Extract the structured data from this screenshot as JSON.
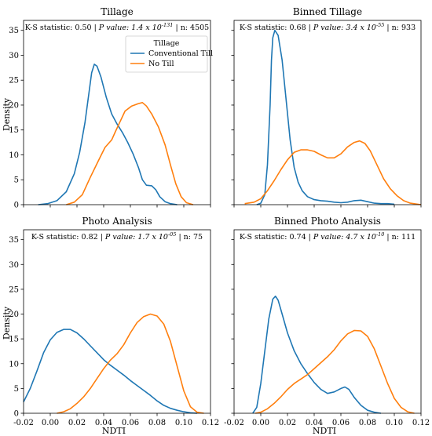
{
  "figure": {
    "ylabel": "Density",
    "xlabel": "NDTI",
    "xlim": [
      -0.02,
      0.12
    ],
    "ylim": [
      0,
      37
    ],
    "xticks": [
      "-0.02",
      "0.00",
      "0.02",
      "0.04",
      "0.06",
      "0.08",
      "0.10",
      "0.12"
    ],
    "yticks": [
      "0",
      "5",
      "10",
      "15",
      "20",
      "25",
      "30",
      "35"
    ]
  },
  "legend": {
    "title": "Tillage",
    "items": [
      "Conventional Till",
      "No Till"
    ]
  },
  "colors": {
    "conventional": "#1f77b4",
    "no_till": "#ff7f0e"
  },
  "chart_data": [
    {
      "type": "line",
      "title": "Tillage",
      "stats": {
        "ks_label": "K-S statistic: 0.50",
        "p_label": "P value:",
        "p_value": "1.4 x 10",
        "p_exp": "-131",
        "n_label": "n: 4505"
      },
      "xlim": [
        -0.02,
        0.12
      ],
      "ylim": [
        0,
        37
      ],
      "series": [
        {
          "name": "Conventional Till",
          "points": [
            [
              -0.009,
              0
            ],
            [
              -0.002,
              0.2
            ],
            [
              0.005,
              0.8
            ],
            [
              0.012,
              2.6
            ],
            [
              0.018,
              6.2
            ],
            [
              0.022,
              10.5
            ],
            [
              0.026,
              16.5
            ],
            [
              0.029,
              22.5
            ],
            [
              0.031,
              26.5
            ],
            [
              0.033,
              28.2
            ],
            [
              0.035,
              27.8
            ],
            [
              0.038,
              25.6
            ],
            [
              0.042,
              21.5
            ],
            [
              0.046,
              18.2
            ],
            [
              0.05,
              16.2
            ],
            [
              0.054,
              14.5
            ],
            [
              0.058,
              12.5
            ],
            [
              0.062,
              10.2
            ],
            [
              0.066,
              7.5
            ],
            [
              0.069,
              5.0
            ],
            [
              0.072,
              3.9
            ],
            [
              0.076,
              3.8
            ],
            [
              0.079,
              3.0
            ],
            [
              0.082,
              1.6
            ],
            [
              0.086,
              0.6
            ],
            [
              0.09,
              0.2
            ],
            [
              0.095,
              0
            ]
          ]
        },
        {
          "name": "No Till",
          "points": [
            [
              0.012,
              0
            ],
            [
              0.018,
              0.5
            ],
            [
              0.024,
              2.0
            ],
            [
              0.03,
              5.5
            ],
            [
              0.036,
              8.8
            ],
            [
              0.041,
              11.5
            ],
            [
              0.046,
              13.0
            ],
            [
              0.049,
              14.8
            ],
            [
              0.052,
              16.5
            ],
            [
              0.056,
              18.8
            ],
            [
              0.061,
              19.8
            ],
            [
              0.066,
              20.3
            ],
            [
              0.069,
              20.5
            ],
            [
              0.072,
              19.8
            ],
            [
              0.076,
              18.2
            ],
            [
              0.081,
              15.6
            ],
            [
              0.086,
              12.0
            ],
            [
              0.09,
              8.0
            ],
            [
              0.094,
              4.2
            ],
            [
              0.098,
              1.6
            ],
            [
              0.102,
              0.4
            ],
            [
              0.107,
              0
            ]
          ]
        }
      ]
    },
    {
      "type": "line",
      "title": "Binned Tillage",
      "stats": {
        "ks_label": "K-S statistic: 0.68",
        "p_label": "P value:",
        "p_value": "3.4 x 10",
        "p_exp": "-55",
        "n_label": "n: 933"
      },
      "xlim": [
        -0.02,
        0.12
      ],
      "ylim": [
        0,
        37
      ],
      "series": [
        {
          "name": "Conventional Till",
          "points": [
            [
              -0.003,
              0
            ],
            [
              0.0,
              0.3
            ],
            [
              0.003,
              2.0
            ],
            [
              0.005,
              8.0
            ],
            [
              0.007,
              20.0
            ],
            [
              0.008,
              29.0
            ],
            [
              0.009,
              33.5
            ],
            [
              0.0105,
              35.0
            ],
            [
              0.013,
              34.0
            ],
            [
              0.016,
              29.0
            ],
            [
              0.019,
              21.0
            ],
            [
              0.022,
              13.0
            ],
            [
              0.025,
              7.5
            ],
            [
              0.028,
              4.5
            ],
            [
              0.031,
              2.8
            ],
            [
              0.035,
              1.6
            ],
            [
              0.04,
              1.0
            ],
            [
              0.045,
              0.8
            ],
            [
              0.05,
              0.7
            ],
            [
              0.055,
              0.5
            ],
            [
              0.06,
              0.4
            ],
            [
              0.065,
              0.5
            ],
            [
              0.07,
              0.8
            ],
            [
              0.075,
              0.9
            ],
            [
              0.08,
              0.6
            ],
            [
              0.085,
              0.3
            ],
            [
              0.09,
              0.2
            ],
            [
              0.095,
              0.2
            ],
            [
              0.1,
              0.1
            ]
          ]
        },
        {
          "name": "No Till",
          "points": [
            [
              -0.012,
              0.2
            ],
            [
              -0.005,
              0.5
            ],
            [
              0.0,
              1.2
            ],
            [
              0.005,
              2.8
            ],
            [
              0.01,
              4.8
            ],
            [
              0.015,
              7.0
            ],
            [
              0.02,
              9.0
            ],
            [
              0.025,
              10.5
            ],
            [
              0.03,
              11.0
            ],
            [
              0.035,
              11.0
            ],
            [
              0.04,
              10.7
            ],
            [
              0.045,
              10.0
            ],
            [
              0.05,
              9.4
            ],
            [
              0.055,
              9.4
            ],
            [
              0.06,
              10.2
            ],
            [
              0.065,
              11.6
            ],
            [
              0.07,
              12.5
            ],
            [
              0.074,
              12.8
            ],
            [
              0.078,
              12.3
            ],
            [
              0.082,
              10.8
            ],
            [
              0.087,
              8.0
            ],
            [
              0.092,
              5.2
            ],
            [
              0.097,
              3.2
            ],
            [
              0.102,
              1.8
            ],
            [
              0.107,
              0.8
            ],
            [
              0.112,
              0.3
            ],
            [
              0.12,
              0
            ]
          ]
        }
      ]
    },
    {
      "type": "line",
      "title": "Photo Analysis",
      "stats": {
        "ks_label": "K-S statistic: 0.82",
        "p_label": "P value:",
        "p_value": "1.7 x 10",
        "p_exp": "-05",
        "n_label": "n: 75"
      },
      "xlim": [
        -0.02,
        0.12
      ],
      "ylim": [
        0,
        37
      ],
      "series": [
        {
          "name": "Conventional Till",
          "points": [
            [
              -0.02,
              2.3
            ],
            [
              -0.015,
              5.0
            ],
            [
              -0.01,
              8.5
            ],
            [
              -0.005,
              12.2
            ],
            [
              0.0,
              14.8
            ],
            [
              0.005,
              16.3
            ],
            [
              0.01,
              16.9
            ],
            [
              0.015,
              16.9
            ],
            [
              0.02,
              16.2
            ],
            [
              0.025,
              15.0
            ],
            [
              0.03,
              13.6
            ],
            [
              0.035,
              12.2
            ],
            [
              0.04,
              10.8
            ],
            [
              0.045,
              9.7
            ],
            [
              0.05,
              8.7
            ],
            [
              0.055,
              7.7
            ],
            [
              0.06,
              6.6
            ],
            [
              0.065,
              5.6
            ],
            [
              0.07,
              4.6
            ],
            [
              0.075,
              3.6
            ],
            [
              0.08,
              2.5
            ],
            [
              0.085,
              1.6
            ],
            [
              0.09,
              1.0
            ],
            [
              0.095,
              0.6
            ],
            [
              0.1,
              0.3
            ],
            [
              0.105,
              0.1
            ],
            [
              0.11,
              0
            ]
          ]
        },
        {
          "name": "No Till",
          "points": [
            [
              0.005,
              0
            ],
            [
              0.01,
              0.3
            ],
            [
              0.015,
              0.9
            ],
            [
              0.02,
              2.0
            ],
            [
              0.025,
              3.3
            ],
            [
              0.03,
              5.0
            ],
            [
              0.035,
              7.0
            ],
            [
              0.04,
              9.0
            ],
            [
              0.045,
              10.7
            ],
            [
              0.05,
              12.0
            ],
            [
              0.055,
              13.8
            ],
            [
              0.06,
              16.2
            ],
            [
              0.065,
              18.3
            ],
            [
              0.07,
              19.5
            ],
            [
              0.075,
              20.0
            ],
            [
              0.08,
              19.6
            ],
            [
              0.085,
              18.0
            ],
            [
              0.09,
              14.5
            ],
            [
              0.095,
              9.5
            ],
            [
              0.1,
              4.5
            ],
            [
              0.105,
              1.3
            ],
            [
              0.11,
              0.2
            ],
            [
              0.115,
              0
            ]
          ]
        }
      ]
    },
    {
      "type": "line",
      "title": "Binned Photo Analysis",
      "stats": {
        "ks_label": "K-S statistic: 0.74",
        "p_label": "P value:",
        "p_value": "4.7 x 10",
        "p_exp": "-10",
        "n_label": "n: 111"
      },
      "xlim": [
        -0.02,
        0.12
      ],
      "ylim": [
        0,
        37
      ],
      "series": [
        {
          "name": "Conventional Till",
          "points": [
            [
              -0.006,
              0
            ],
            [
              -0.003,
              1.2
            ],
            [
              0.0,
              6.0
            ],
            [
              0.003,
              12.5
            ],
            [
              0.006,
              19.0
            ],
            [
              0.009,
              23.0
            ],
            [
              0.011,
              23.6
            ],
            [
              0.013,
              22.8
            ],
            [
              0.016,
              20.0
            ],
            [
              0.02,
              16.2
            ],
            [
              0.025,
              12.6
            ],
            [
              0.03,
              10.0
            ],
            [
              0.035,
              8.0
            ],
            [
              0.04,
              6.2
            ],
            [
              0.045,
              4.8
            ],
            [
              0.05,
              4.0
            ],
            [
              0.055,
              4.3
            ],
            [
              0.06,
              5.0
            ],
            [
              0.063,
              5.3
            ],
            [
              0.066,
              4.8
            ],
            [
              0.07,
              3.2
            ],
            [
              0.075,
              1.6
            ],
            [
              0.08,
              0.6
            ],
            [
              0.085,
              0.2
            ],
            [
              0.09,
              0
            ]
          ]
        },
        {
          "name": "No Till",
          "points": [
            [
              -0.004,
              0
            ],
            [
              0.0,
              0.2
            ],
            [
              0.005,
              0.9
            ],
            [
              0.01,
              2.0
            ],
            [
              0.015,
              3.3
            ],
            [
              0.02,
              4.8
            ],
            [
              0.025,
              6.0
            ],
            [
              0.03,
              6.9
            ],
            [
              0.035,
              7.8
            ],
            [
              0.04,
              9.0
            ],
            [
              0.045,
              10.2
            ],
            [
              0.05,
              11.4
            ],
            [
              0.055,
              12.8
            ],
            [
              0.06,
              14.6
            ],
            [
              0.065,
              16.0
            ],
            [
              0.07,
              16.7
            ],
            [
              0.075,
              16.6
            ],
            [
              0.08,
              15.5
            ],
            [
              0.085,
              13.0
            ],
            [
              0.09,
              9.5
            ],
            [
              0.095,
              6.0
            ],
            [
              0.1,
              3.0
            ],
            [
              0.105,
              1.2
            ],
            [
              0.11,
              0.3
            ],
            [
              0.115,
              0
            ]
          ]
        }
      ]
    }
  ]
}
